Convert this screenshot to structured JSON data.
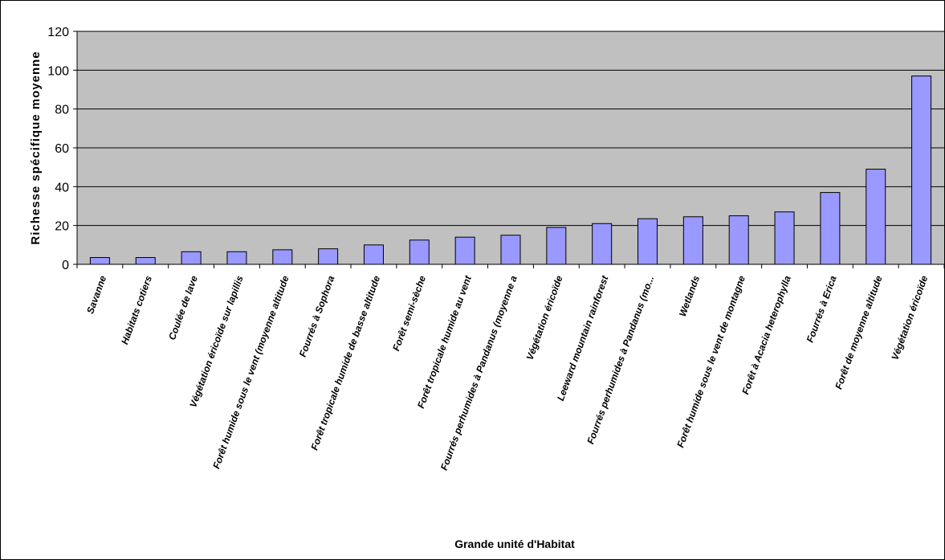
{
  "chart_data": {
    "type": "bar",
    "title": "",
    "xlabel": "Grande unité d'Habitat",
    "ylabel": "Richesse spécifique moyenne",
    "ylim": [
      0,
      120
    ],
    "yticks": [
      "0",
      "20",
      "40",
      "60",
      "80",
      "100",
      "120"
    ],
    "grid": true,
    "legend": "none",
    "categories": [
      "Savanne",
      "Habitats cotiers",
      "Coulée de lave",
      "Végétation éricoïde sur lapillis",
      "Forêt humide sous le vent  (moyenne altitude",
      "Fourrés à Sophora",
      "Forêt tropicale humide de basse altitude",
      "Forêt semi-sèche",
      "Forêt tropicale humide au vent",
      "Fourrés perhumides à Pandanus  (moyenne a",
      "Végétation éricoïde",
      "Leeward mountain rainforest",
      "Fourrés perhumides à Pandanus  (mo...",
      "Wetlands",
      "Forêt humide sous le vent de montagne",
      "Forêt à Acacia heterophylla",
      "Fourrés à Erica",
      "Forêt de moyenne altitude",
      "Végétation éricoïde"
    ],
    "values": [
      3.5,
      3.5,
      6.5,
      6.5,
      7.5,
      8,
      10,
      12.5,
      14,
      15,
      19,
      21,
      23.5,
      24.5,
      25,
      27,
      37,
      49,
      97
    ],
    "colors": {
      "plot_background": "#c0c0c0",
      "bar_fill": "#9999ff",
      "bar_stroke": "#000000",
      "gridline": "#000000"
    }
  }
}
